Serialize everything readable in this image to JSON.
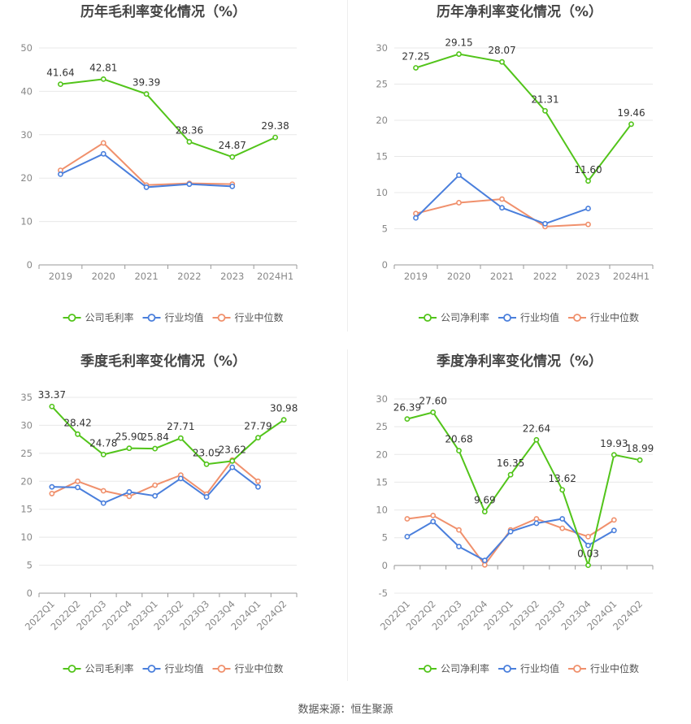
{
  "colors": {
    "company": "#52c41a",
    "industry_avg": "#4a7fdc",
    "industry_median": "#f0906c"
  },
  "legend": {
    "company_gross": "公司毛利率",
    "company_net": "公司净利率",
    "avg": "行业均值",
    "median": "行业中位数"
  },
  "source": "数据来源：恒生聚源",
  "chart_data": [
    {
      "type": "line",
      "title": "历年毛利率变化情况（%）",
      "categories": [
        "2019",
        "2020",
        "2021",
        "2022",
        "2023",
        "2024H1"
      ],
      "ylim": [
        0,
        50
      ],
      "yticks": [
        0,
        10,
        20,
        30,
        40,
        50
      ],
      "series": [
        {
          "name": "公司毛利率",
          "values": [
            41.64,
            42.81,
            39.39,
            28.36,
            24.87,
            29.38
          ],
          "labels": [
            "41.64",
            "42.81",
            "39.39",
            "28.36",
            "24.87",
            "29.38"
          ]
        },
        {
          "name": "行业均值",
          "values": [
            20.9,
            25.6,
            17.9,
            18.6,
            18.1,
            null
          ]
        },
        {
          "name": "行业中位数",
          "values": [
            21.8,
            28.1,
            18.4,
            18.8,
            18.6,
            null
          ]
        }
      ]
    },
    {
      "type": "line",
      "title": "历年净利率变化情况（%）",
      "categories": [
        "2019",
        "2020",
        "2021",
        "2022",
        "2023",
        "2024H1"
      ],
      "ylim": [
        0,
        30
      ],
      "yticks": [
        0,
        5,
        10,
        15,
        20,
        25,
        30
      ],
      "series": [
        {
          "name": "公司净利率",
          "values": [
            27.25,
            29.15,
            28.07,
            21.31,
            11.6,
            19.46
          ],
          "labels": [
            "27.25",
            "29.15",
            "28.07",
            "21.31",
            "11.60",
            "19.46"
          ]
        },
        {
          "name": "行业均值",
          "values": [
            6.5,
            12.4,
            7.9,
            5.7,
            7.8,
            null
          ]
        },
        {
          "name": "行业中位数",
          "values": [
            7.1,
            8.6,
            9.1,
            5.3,
            5.6,
            null
          ]
        }
      ]
    },
    {
      "type": "line",
      "title": "季度毛利率变化情况（%）",
      "categories": [
        "2022Q1",
        "2022Q2",
        "2022Q3",
        "2022Q4",
        "2023Q1",
        "2023Q2",
        "2023Q3",
        "2023Q4",
        "2024Q1",
        "2024Q2"
      ],
      "ylim": [
        0,
        35
      ],
      "yticks": [
        0,
        5,
        10,
        15,
        20,
        25,
        30,
        35
      ],
      "series": [
        {
          "name": "公司毛利率",
          "values": [
            33.37,
            28.42,
            24.78,
            25.9,
            25.84,
            27.71,
            23.05,
            23.62,
            27.79,
            30.98
          ],
          "labels": [
            "33.37",
            "28.42",
            "24.78",
            "25.90",
            "25.84",
            "27.71",
            "23.05",
            "23.62",
            "27.79",
            "30.98"
          ]
        },
        {
          "name": "行业均值",
          "values": [
            19.0,
            18.9,
            16.1,
            18.1,
            17.4,
            20.5,
            17.2,
            22.5,
            19.0,
            null
          ]
        },
        {
          "name": "行业中位数",
          "values": [
            17.8,
            20.0,
            18.3,
            17.3,
            19.3,
            21.1,
            17.7,
            23.8,
            20.0,
            null
          ]
        }
      ]
    },
    {
      "type": "line",
      "title": "季度净利率变化情况（%）",
      "categories": [
        "2022Q1",
        "2022Q2",
        "2022Q3",
        "2022Q4",
        "2023Q1",
        "2023Q2",
        "2023Q3",
        "2023Q4",
        "2024Q1",
        "2024Q2"
      ],
      "ylim": [
        -5,
        30
      ],
      "yticks": [
        -5,
        0,
        5,
        10,
        15,
        20,
        25,
        30
      ],
      "series": [
        {
          "name": "公司净利率",
          "values": [
            26.39,
            27.6,
            20.68,
            9.69,
            16.35,
            22.64,
            13.62,
            0.03,
            19.93,
            18.99
          ],
          "labels": [
            "26.39",
            "27.60",
            "20.68",
            "9.69",
            "16.35",
            "22.64",
            "13.62",
            "0.03",
            "19.93",
            "18.99"
          ]
        },
        {
          "name": "行业均值",
          "values": [
            5.2,
            7.9,
            3.4,
            0.9,
            6.1,
            7.6,
            8.4,
            3.6,
            6.3,
            null
          ]
        },
        {
          "name": "行业中位数",
          "values": [
            8.4,
            9.0,
            6.4,
            0.1,
            6.4,
            8.4,
            6.7,
            5.2,
            8.2,
            null
          ]
        }
      ]
    }
  ]
}
